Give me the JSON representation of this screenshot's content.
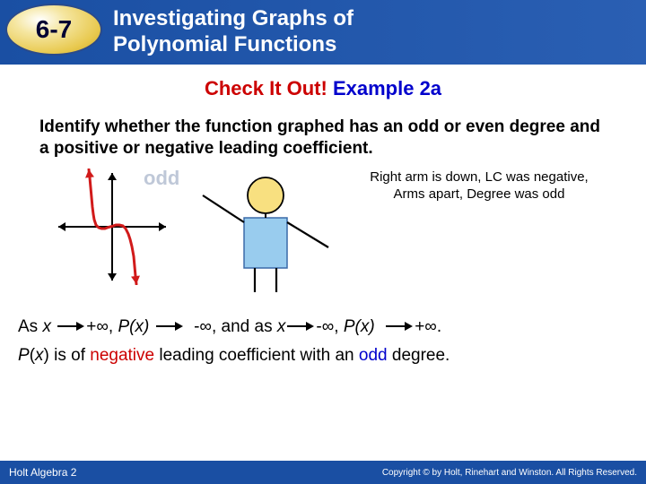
{
  "header": {
    "section_number": "6-7",
    "title_line1": "Investigating Graphs of",
    "title_line2": "Polynomial Functions",
    "oval_bg_light": "#f5e6a0",
    "oval_bg_dark": "#caa520",
    "bar_color": "#1a4fa3"
  },
  "subtitle": {
    "red_text": "Check It Out!",
    "blue_text": "Example 2a"
  },
  "question": "Identify whether the function graphed has an odd or even degree and a positive or negative leading coefficient.",
  "graph": {
    "type": "line",
    "axis_color": "#000000",
    "curve_color": "#d11a1a",
    "curve_width": 3,
    "arrow_size": 7,
    "xlim": [
      -65,
      65
    ],
    "ylim": [
      -65,
      65
    ],
    "curve_points": [
      [
        -26,
        64
      ],
      [
        -25,
        55
      ],
      [
        -24,
        44
      ],
      [
        -23,
        33
      ],
      [
        -22,
        22
      ],
      [
        -21,
        14
      ],
      [
        -20,
        8
      ],
      [
        -18,
        2
      ],
      [
        -15,
        -1
      ],
      [
        -12,
        -2
      ],
      [
        -8,
        -2
      ],
      [
        -4,
        -0.5
      ],
      [
        0,
        0.5
      ],
      [
        4,
        2
      ],
      [
        8,
        2
      ],
      [
        12,
        1
      ],
      [
        15,
        -2
      ],
      [
        18,
        -8
      ],
      [
        20,
        -14
      ],
      [
        22,
        -22
      ],
      [
        24,
        -33
      ],
      [
        25,
        -44
      ],
      [
        26,
        -55
      ],
      [
        27,
        -64
      ]
    ],
    "ghost_label": "odd"
  },
  "stick": {
    "head_color": "#f8e080",
    "head_stroke": "#000000",
    "torso_color": "#99ccee",
    "torso_stroke": "#3a6aa8",
    "arm_color": "#000000",
    "leg_color": "#000000"
  },
  "rightnote": {
    "line1": "Right arm is down, LC was negative,",
    "line2": "Arms apart, Degree was odd"
  },
  "endbehavior": {
    "prefix": "As ",
    "seg1_var": "x",
    "seg1_to": "+∞, ",
    "seg1_fn": "P(x)",
    "seg2_to": "-∞, and as ",
    "seg2_var": "x",
    "seg3_to": "-∞, ",
    "seg3_fn": "P(x)",
    "seg4_to": "+∞.",
    "var_style": "italic"
  },
  "conclusion": {
    "pre": "P(x) is of ",
    "neg": "negative",
    "mid": " leading coefficient with an ",
    "odd": "odd",
    "post": " degree."
  },
  "footer": {
    "left": "Holt Algebra 2",
    "right": "Copyright © by Holt, Rinehart and Winston. All Rights Reserved."
  },
  "colors": {
    "red": "#cc0000",
    "blue": "#0000cc",
    "black": "#000000"
  }
}
